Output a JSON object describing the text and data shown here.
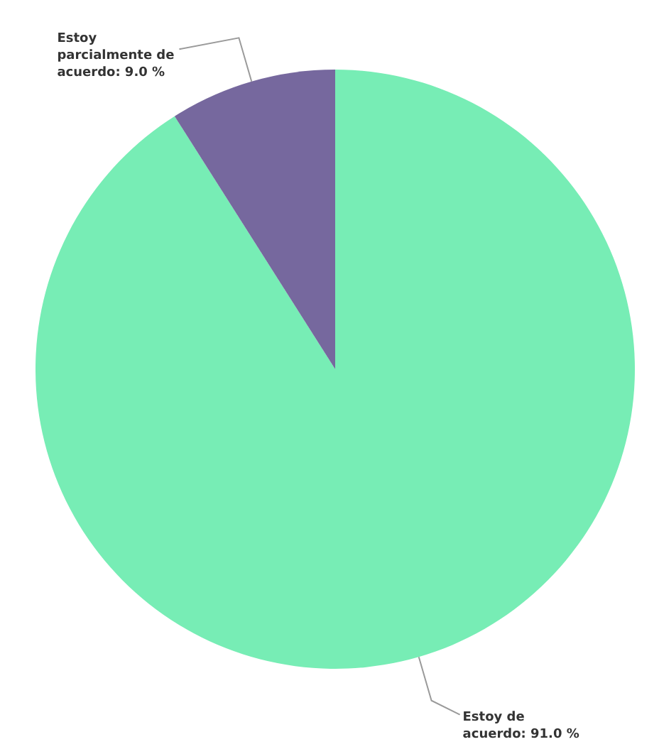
{
  "chart_data": {
    "type": "pie",
    "categories": [
      "Estoy de acuerdo: 91.0 %",
      "Estoy parcialmente de acuerdo: 9.0 %"
    ],
    "values": [
      91.0,
      9.0
    ],
    "colors": [
      "#77edb5",
      "#76689e"
    ]
  }
}
